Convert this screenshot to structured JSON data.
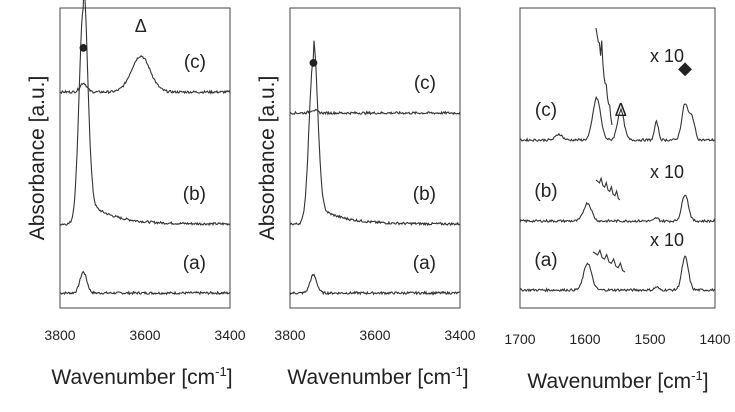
{
  "chart_data": [
    {
      "type": "line",
      "panel": "left",
      "title": "",
      "xlabel": "Wavenumber [cm",
      "xlabel_sup": "-1",
      "xlabel_suffix": "]",
      "ylabel": "Absorbance [a.u.]",
      "xlim": [
        3800,
        3400
      ],
      "xticks": [
        "3800",
        "3600",
        "3400"
      ],
      "grid": false,
      "series": [
        {
          "label": "(a)",
          "baseline": 0.05,
          "peaks": [
            {
              "x": 3745,
              "h": 0.07,
              "w": 8
            }
          ]
        },
        {
          "label": "(b)",
          "baseline": 0.28,
          "peaks": [
            {
              "x": 3745,
              "h": 0.72,
              "w": 10
            }
          ]
        },
        {
          "label": "(c)",
          "baseline": 0.72,
          "peaks": [
            {
              "x": 3745,
              "h": 0.03,
              "w": 8
            },
            {
              "x": 3610,
              "h": 0.12,
              "w": 22
            }
          ]
        }
      ],
      "markers": [
        {
          "symbol": "●",
          "x": 3745,
          "y": 0.85
        },
        {
          "symbol": "Δ",
          "x": 3610,
          "y": 0.92
        }
      ]
    },
    {
      "type": "line",
      "panel": "middle",
      "title": "",
      "xlabel": "Wavenumber [cm",
      "xlabel_sup": "-1",
      "xlabel_suffix": "]",
      "ylabel": "Absorbance [a.u.]",
      "xlim": [
        3800,
        3400
      ],
      "xticks": [
        "3800",
        "3600",
        "3400"
      ],
      "grid": false,
      "series": [
        {
          "label": "(a)",
          "baseline": 0.05,
          "peaks": [
            {
              "x": 3745,
              "h": 0.06,
              "w": 8
            }
          ]
        },
        {
          "label": "(b)",
          "baseline": 0.28,
          "peaks": [
            {
              "x": 3745,
              "h": 0.55,
              "w": 10
            }
          ]
        },
        {
          "label": "(c)",
          "baseline": 0.65,
          "peaks": [
            {
              "x": 3745,
              "h": 0.01,
              "w": 8
            }
          ]
        }
      ],
      "markers": [
        {
          "symbol": "●",
          "x": 3745,
          "y": 0.8
        }
      ]
    },
    {
      "type": "line",
      "panel": "right",
      "title": "",
      "xlabel": "Wavenumber [cm",
      "xlabel_sup": "-1",
      "xlabel_suffix": "]",
      "ylabel": "",
      "xlim": [
        1700,
        1400
      ],
      "xticks": [
        "1700",
        "1600",
        "1500",
        "1400"
      ],
      "grid": false,
      "series": [
        {
          "label": "(a)",
          "baseline": 0.06,
          "peaks": [
            {
              "x": 1596,
              "h": 0.09,
              "w": 6
            },
            {
              "x": 1490,
              "h": 0.01,
              "w": 3
            },
            {
              "x": 1446,
              "h": 0.11,
              "w": 5
            }
          ]
        },
        {
          "label": "(b)",
          "baseline": 0.29,
          "peaks": [
            {
              "x": 1596,
              "h": 0.06,
              "w": 6
            },
            {
              "x": 1490,
              "h": 0.01,
              "w": 3
            },
            {
              "x": 1446,
              "h": 0.09,
              "w": 5
            }
          ]
        },
        {
          "label": "(c)",
          "baseline": 0.56,
          "peaks": [
            {
              "x": 1640,
              "h": 0.02,
              "w": 5
            },
            {
              "x": 1582,
              "h": 0.14,
              "w": 6
            },
            {
              "x": 1545,
              "h": 0.1,
              "w": 5
            },
            {
              "x": 1490,
              "h": 0.06,
              "w": 3
            },
            {
              "x": 1446,
              "h": 0.12,
              "w": 5
            },
            {
              "x": 1435,
              "h": 0.07,
              "w": 4
            }
          ]
        }
      ],
      "magnified": [
        {
          "label": "x 10",
          "of": "(a)"
        },
        {
          "label": "x 10",
          "of": "(b)"
        },
        {
          "label": "x 10",
          "of": "(c)"
        }
      ],
      "markers": [
        {
          "symbol": "Δ",
          "x": 1545,
          "y": 0.64
        },
        {
          "symbol": "◆",
          "x": 1446,
          "y": 0.78
        }
      ]
    }
  ]
}
